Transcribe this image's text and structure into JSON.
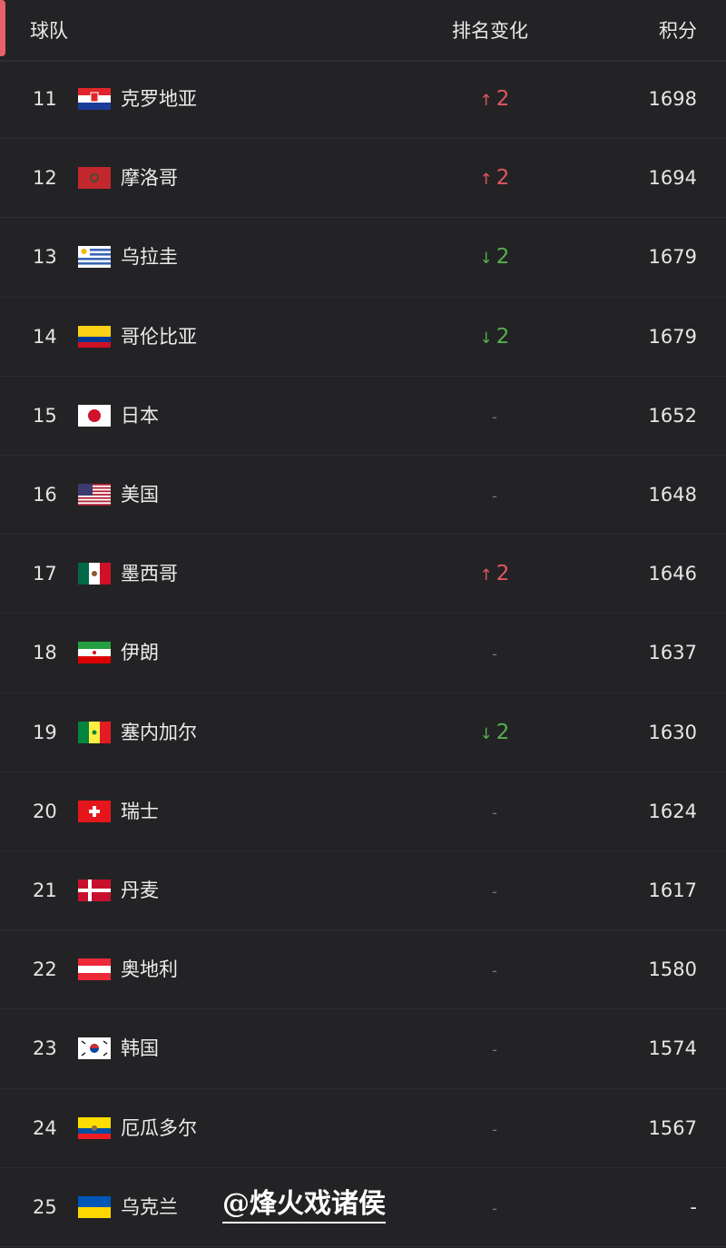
{
  "header": {
    "team": "球队",
    "change": "排名变化",
    "points": "积分"
  },
  "colors": {
    "accent": "#e8606b",
    "up": "#e2575f",
    "down": "#55b04f"
  },
  "rows": [
    {
      "rank": "11",
      "flag": "hr",
      "name": "克罗地亚",
      "dir": "up",
      "change": "2",
      "points": "1698"
    },
    {
      "rank": "12",
      "flag": "ma",
      "name": "摩洛哥",
      "dir": "up",
      "change": "2",
      "points": "1694"
    },
    {
      "rank": "13",
      "flag": "uy",
      "name": "乌拉圭",
      "dir": "down",
      "change": "2",
      "points": "1679"
    },
    {
      "rank": "14",
      "flag": "co",
      "name": "哥伦比亚",
      "dir": "down",
      "change": "2",
      "points": "1679"
    },
    {
      "rank": "15",
      "flag": "jp",
      "name": "日本",
      "dir": "none",
      "change": "-",
      "points": "1652"
    },
    {
      "rank": "16",
      "flag": "us",
      "name": "美国",
      "dir": "none",
      "change": "-",
      "points": "1648"
    },
    {
      "rank": "17",
      "flag": "mx",
      "name": "墨西哥",
      "dir": "up",
      "change": "2",
      "points": "1646"
    },
    {
      "rank": "18",
      "flag": "ir",
      "name": "伊朗",
      "dir": "none",
      "change": "-",
      "points": "1637"
    },
    {
      "rank": "19",
      "flag": "sn",
      "name": "塞内加尔",
      "dir": "down",
      "change": "2",
      "points": "1630"
    },
    {
      "rank": "20",
      "flag": "ch",
      "name": "瑞士",
      "dir": "none",
      "change": "-",
      "points": "1624"
    },
    {
      "rank": "21",
      "flag": "dk",
      "name": "丹麦",
      "dir": "none",
      "change": "-",
      "points": "1617"
    },
    {
      "rank": "22",
      "flag": "at",
      "name": "奥地利",
      "dir": "none",
      "change": "-",
      "points": "1580"
    },
    {
      "rank": "23",
      "flag": "kr",
      "name": "韩国",
      "dir": "none",
      "change": "-",
      "points": "1574"
    },
    {
      "rank": "24",
      "flag": "ec",
      "name": "厄瓜多尔",
      "dir": "none",
      "change": "-",
      "points": "1567"
    },
    {
      "rank": "25",
      "flag": "ua",
      "name": "乌克兰",
      "dir": "none",
      "change": "-",
      "points": "-"
    }
  ],
  "watermark": "@烽火戏诸侯"
}
